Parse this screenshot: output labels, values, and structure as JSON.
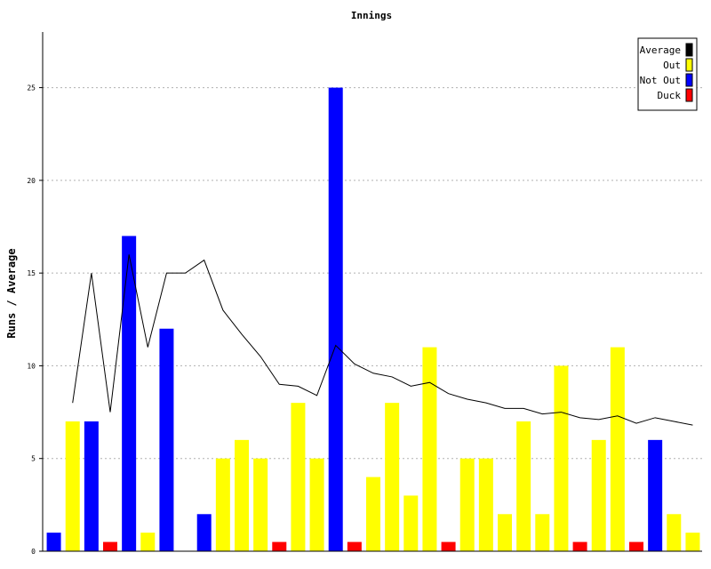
{
  "chart_data": {
    "type": "bar",
    "title": "Innings",
    "xlabel": "",
    "ylabel": "Runs / Average",
    "ylim": [
      0,
      28
    ],
    "yticks": [
      0,
      5,
      10,
      15,
      20,
      25
    ],
    "grid": true,
    "legend_position": "top-right",
    "bars": [
      {
        "value": 1,
        "kind": "Not Out"
      },
      {
        "value": 7,
        "kind": "Out"
      },
      {
        "value": 7,
        "kind": "Not Out"
      },
      {
        "value": 0.5,
        "kind": "Duck"
      },
      {
        "value": 17,
        "kind": "Not Out"
      },
      {
        "value": 1,
        "kind": "Out"
      },
      {
        "value": 12,
        "kind": "Not Out"
      },
      {
        "value": 0,
        "kind": "Out"
      },
      {
        "value": 2,
        "kind": "Not Out"
      },
      {
        "value": 5,
        "kind": "Out"
      },
      {
        "value": 6,
        "kind": "Out"
      },
      {
        "value": 5,
        "kind": "Out"
      },
      {
        "value": 0.5,
        "kind": "Duck"
      },
      {
        "value": 8,
        "kind": "Out"
      },
      {
        "value": 5,
        "kind": "Out"
      },
      {
        "value": 25,
        "kind": "Not Out"
      },
      {
        "value": 0.5,
        "kind": "Duck"
      },
      {
        "value": 4,
        "kind": "Out"
      },
      {
        "value": 8,
        "kind": "Out"
      },
      {
        "value": 3,
        "kind": "Out"
      },
      {
        "value": 11,
        "kind": "Out"
      },
      {
        "value": 0.5,
        "kind": "Duck"
      },
      {
        "value": 5,
        "kind": "Out"
      },
      {
        "value": 5,
        "kind": "Out"
      },
      {
        "value": 2,
        "kind": "Out"
      },
      {
        "value": 7,
        "kind": "Out"
      },
      {
        "value": 2,
        "kind": "Out"
      },
      {
        "value": 10,
        "kind": "Out"
      },
      {
        "value": 0.5,
        "kind": "Duck"
      },
      {
        "value": 6,
        "kind": "Out"
      },
      {
        "value": 11,
        "kind": "Out"
      },
      {
        "value": 0.5,
        "kind": "Duck"
      },
      {
        "value": 6,
        "kind": "Not Out"
      },
      {
        "value": 2,
        "kind": "Out"
      },
      {
        "value": 1,
        "kind": "Out"
      }
    ],
    "average": [
      null,
      8.0,
      15.0,
      7.5,
      16.0,
      11.0,
      15.0,
      15.0,
      15.7,
      13.0,
      11.7,
      10.5,
      9.0,
      8.9,
      8.4,
      11.1,
      10.1,
      9.6,
      9.4,
      8.9,
      9.1,
      8.5,
      8.2,
      8.0,
      7.7,
      7.7,
      7.4,
      7.5,
      7.2,
      7.1,
      7.3,
      6.9,
      7.2,
      7.0,
      6.8
    ],
    "legend": [
      {
        "label": "Average",
        "color": "#000000"
      },
      {
        "label": "Out",
        "color": "#ffff00"
      },
      {
        "label": "Not Out",
        "color": "#0000ff"
      },
      {
        "label": "Duck",
        "color": "#ff0000"
      }
    ],
    "colors": {
      "Out": "#ffff00",
      "Not Out": "#0000ff",
      "Duck": "#ff0000",
      "Average": "#000000"
    }
  }
}
